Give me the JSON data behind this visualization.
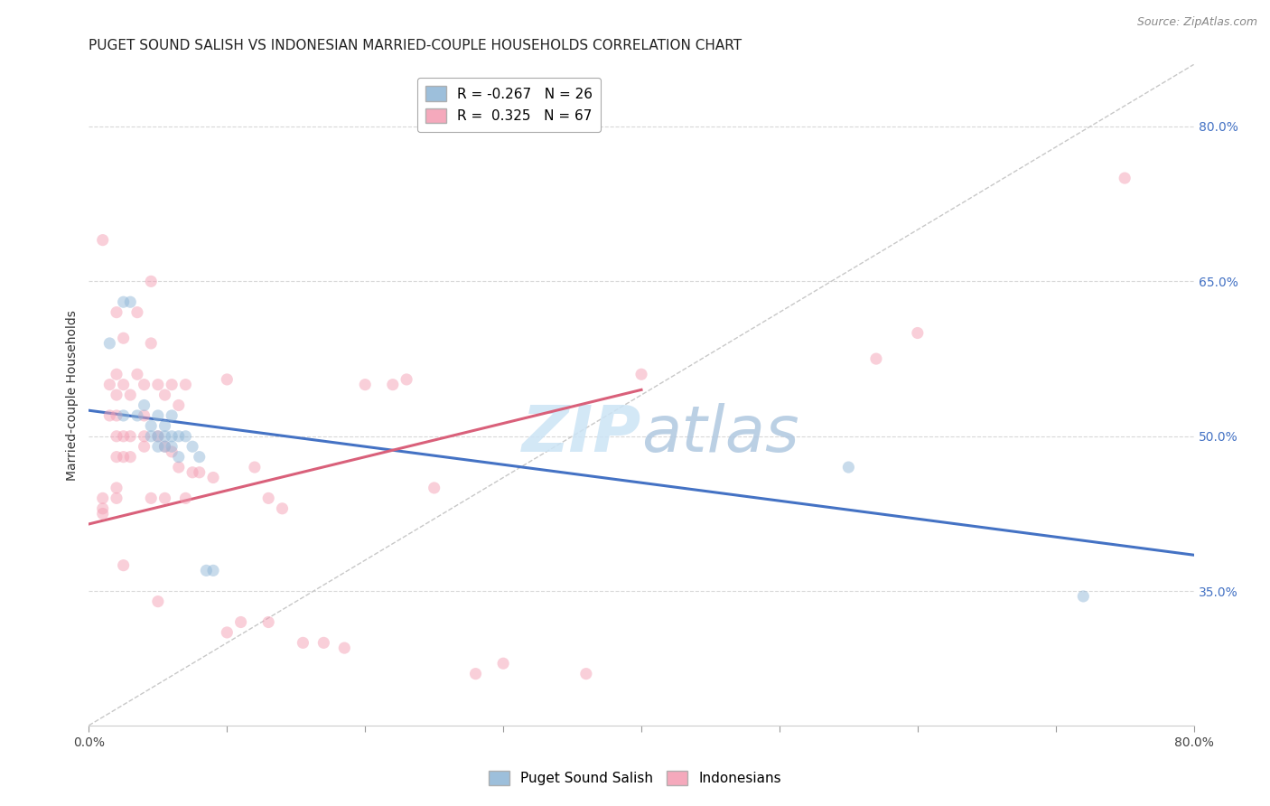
{
  "title": "PUGET SOUND SALISH VS INDONESIAN MARRIED-COUPLE HOUSEHOLDS CORRELATION CHART",
  "source": "Source: ZipAtlas.com",
  "ylabel": "Married-couple Households",
  "xlim": [
    0.0,
    0.8
  ],
  "ylim": [
    0.22,
    0.86
  ],
  "xticks": [
    0.0,
    0.1,
    0.2,
    0.3,
    0.4,
    0.5,
    0.6,
    0.7,
    0.8
  ],
  "xticklabels": [
    "0.0%",
    "",
    "",
    "",
    "",
    "",
    "",
    "",
    "80.0%"
  ],
  "yticks": [
    0.35,
    0.5,
    0.65,
    0.8
  ],
  "yticklabels_right": [
    "35.0%",
    "50.0%",
    "65.0%",
    "80.0%"
  ],
  "legend_r1": "R = -0.267   N = 26",
  "legend_r2": "R =  0.325   N = 67",
  "blue_scatter_x": [
    0.015,
    0.025,
    0.025,
    0.03,
    0.035,
    0.04,
    0.045,
    0.045,
    0.05,
    0.05,
    0.05,
    0.055,
    0.055,
    0.055,
    0.06,
    0.06,
    0.06,
    0.065,
    0.065,
    0.07,
    0.075,
    0.08,
    0.085,
    0.09,
    0.55,
    0.72
  ],
  "blue_scatter_y": [
    0.59,
    0.63,
    0.52,
    0.63,
    0.52,
    0.53,
    0.51,
    0.5,
    0.52,
    0.5,
    0.49,
    0.51,
    0.5,
    0.49,
    0.52,
    0.5,
    0.49,
    0.5,
    0.48,
    0.5,
    0.49,
    0.48,
    0.37,
    0.37,
    0.47,
    0.345
  ],
  "pink_scatter_x": [
    0.01,
    0.01,
    0.01,
    0.01,
    0.015,
    0.015,
    0.02,
    0.02,
    0.02,
    0.02,
    0.02,
    0.02,
    0.02,
    0.02,
    0.025,
    0.025,
    0.025,
    0.025,
    0.025,
    0.03,
    0.03,
    0.03,
    0.035,
    0.035,
    0.04,
    0.04,
    0.04,
    0.04,
    0.045,
    0.045,
    0.045,
    0.05,
    0.05,
    0.05,
    0.055,
    0.055,
    0.055,
    0.06,
    0.06,
    0.065,
    0.065,
    0.07,
    0.07,
    0.075,
    0.08,
    0.09,
    0.1,
    0.1,
    0.11,
    0.12,
    0.13,
    0.13,
    0.14,
    0.155,
    0.17,
    0.185,
    0.2,
    0.22,
    0.23,
    0.25,
    0.28,
    0.3,
    0.36,
    0.4,
    0.57,
    0.6,
    0.75
  ],
  "pink_scatter_y": [
    0.69,
    0.44,
    0.43,
    0.425,
    0.55,
    0.52,
    0.62,
    0.56,
    0.54,
    0.52,
    0.5,
    0.48,
    0.45,
    0.44,
    0.595,
    0.55,
    0.5,
    0.48,
    0.375,
    0.54,
    0.5,
    0.48,
    0.62,
    0.56,
    0.55,
    0.52,
    0.5,
    0.49,
    0.65,
    0.59,
    0.44,
    0.55,
    0.5,
    0.34,
    0.54,
    0.49,
    0.44,
    0.55,
    0.485,
    0.53,
    0.47,
    0.55,
    0.44,
    0.465,
    0.465,
    0.46,
    0.555,
    0.31,
    0.32,
    0.47,
    0.44,
    0.32,
    0.43,
    0.3,
    0.3,
    0.295,
    0.55,
    0.55,
    0.555,
    0.45,
    0.27,
    0.28,
    0.27,
    0.56,
    0.575,
    0.6,
    0.75
  ],
  "blue_line_x": [
    0.0,
    0.8
  ],
  "blue_line_y": [
    0.525,
    0.385
  ],
  "pink_line_x": [
    0.0,
    0.4
  ],
  "pink_line_y": [
    0.415,
    0.545
  ],
  "diagonal_line_x": [
    0.0,
    0.8
  ],
  "diagonal_line_y": [
    0.22,
    0.86
  ],
  "scatter_size": 90,
  "scatter_alpha": 0.5,
  "blue_color": "#92b8d8",
  "pink_color": "#f4a0b5",
  "blue_line_color": "#4472c4",
  "pink_line_color": "#d9607a",
  "diagonal_color": "#c8c8c8",
  "background_color": "#ffffff",
  "grid_color": "#d8d8d8",
  "title_fontsize": 11,
  "axis_fontsize": 10,
  "tick_fontsize": 10,
  "right_tick_color": "#4472c4"
}
